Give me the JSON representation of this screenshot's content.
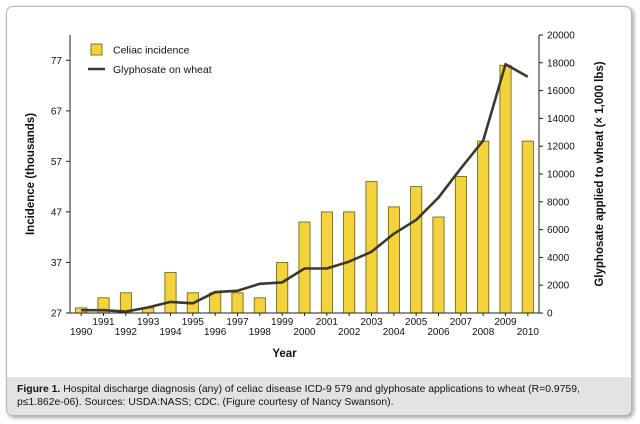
{
  "chart_data": {
    "type": "bar",
    "x": [
      "1990",
      "1991",
      "1992",
      "1993",
      "1994",
      "1995",
      "1996",
      "1997",
      "1998",
      "1999",
      "2000",
      "2001",
      "2002",
      "2003",
      "2004",
      "2005",
      "2006",
      "2007",
      "2008",
      "2009",
      "2010"
    ],
    "xlabel": "Year",
    "ylabel_left": "Incidence (thousands)",
    "ylabel_right": "Glyphosate applied to wheat (× 1,000 lbs)",
    "ylim_left": [
      27,
      82
    ],
    "ylim_right": [
      0,
      20000
    ],
    "yticks_left": [
      "27",
      "37",
      "47",
      "57",
      "67",
      "77"
    ],
    "yticks_right": [
      "0",
      "2000",
      "4000",
      "6000",
      "8000",
      "10000",
      "12000",
      "14000",
      "16000",
      "18000",
      "20000"
    ],
    "series": [
      {
        "name": "Celiac incidence",
        "type": "bar",
        "axis": "left",
        "color": "#f2d33c",
        "values": [
          28,
          30,
          31,
          28,
          35,
          31,
          31,
          31,
          30,
          37,
          45,
          47,
          47,
          53,
          48,
          52,
          46,
          54,
          61,
          76,
          61
        ]
      },
      {
        "name": "Glyphosate on wheat",
        "type": "line",
        "axis": "right",
        "color": "#3a3a2a",
        "values": [
          200,
          200,
          100,
          400,
          800,
          700,
          1500,
          1600,
          2100,
          2200,
          3200,
          3200,
          3700,
          4400,
          5700,
          6700,
          8300,
          10400,
          12400,
          17900,
          17000
        ]
      }
    ],
    "grid": false,
    "legend_position": "top-left"
  },
  "caption": {
    "label": "Figure 1.",
    "text": "Hospital discharge diagnosis (any) of celiac disease ICD-9 579 and glyphosate applications to wheat (R=0.9759, p≤1.862e-06). Sources: USDA:NASS; CDC. (Figure courtesy of Nancy Swanson)."
  }
}
